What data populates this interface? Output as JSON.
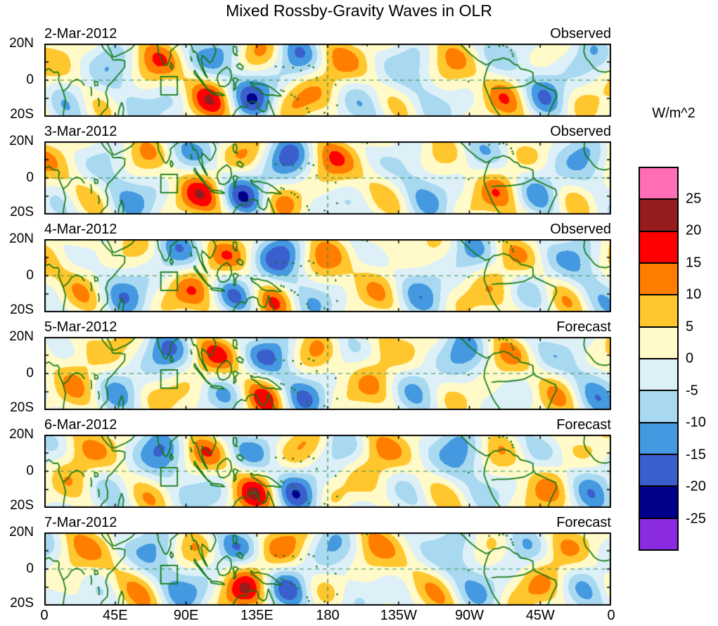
{
  "chart_data": {
    "type": "heatmap",
    "title": "Mixed Rossby-Gravity Waves in OLR",
    "units": "W/m^2",
    "panels": [
      {
        "date": "2-Mar-2012",
        "source": "Observed"
      },
      {
        "date": "3-Mar-2012",
        "source": "Observed"
      },
      {
        "date": "4-Mar-2012",
        "source": "Observed"
      },
      {
        "date": "5-Mar-2012",
        "source": "Forecast"
      },
      {
        "date": "6-Mar-2012",
        "source": "Forecast"
      },
      {
        "date": "7-Mar-2012",
        "source": "Forecast"
      }
    ],
    "x_tick_labels": [
      "0",
      "45E",
      "90E",
      "135E",
      "180",
      "135W",
      "90W",
      "45W",
      "0"
    ],
    "y_tick_labels": [
      "20N",
      "0",
      "20S"
    ],
    "lon_range_deg": [
      0,
      360
    ],
    "lat_range_deg": [
      -20,
      20
    ],
    "contour_levels": [
      -25,
      -20,
      -15,
      -10,
      -5,
      0,
      5,
      10,
      15,
      20,
      25
    ],
    "colorbar": {
      "tick_labels": [
        "25",
        "20",
        "15",
        "10",
        "5",
        "0",
        "-5",
        "-10",
        "-15",
        "-20",
        "-25"
      ],
      "colors_low_to_high": [
        "#8A2BE2",
        "#00008B",
        "#3A5FCD",
        "#4499E0",
        "#A8D9F0",
        "#DDF0F8",
        "#FFFAC8",
        "#FFC62E",
        "#FF7E00",
        "#FF0000",
        "#951D1D",
        "#FF6EB4"
      ]
    },
    "coast_color": "#117711",
    "gridline_color": "#2E8B57"
  }
}
